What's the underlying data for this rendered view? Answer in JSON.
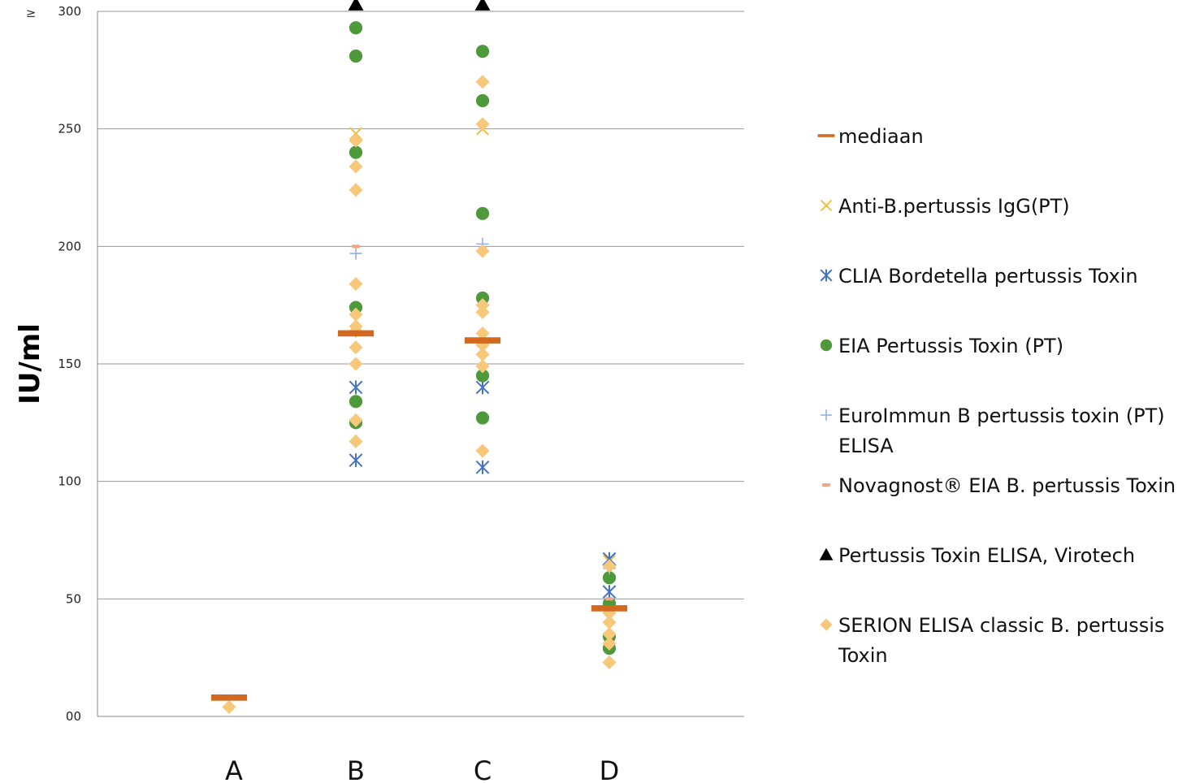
{
  "chart_data": {
    "type": "scatter",
    "ylabel": "IU/ml",
    "ylim": [
      0,
      300
    ],
    "yticks": [
      {
        "value": 0,
        "label": "00"
      },
      {
        "value": 50,
        "label": "50"
      },
      {
        "value": 100,
        "label": "100"
      },
      {
        "value": 150,
        "label": "150"
      },
      {
        "value": 200,
        "label": "200"
      },
      {
        "value": 250,
        "label": "250"
      },
      {
        "value": 300,
        "label": "300"
      }
    ],
    "top_tick_prefix": "≥",
    "categories": [
      "A",
      "B",
      "C",
      "D"
    ],
    "grid": true,
    "legend_position": "right",
    "series": [
      {
        "name": "mediaan",
        "marker": "dash",
        "color": "#d2691e",
        "points": [
          [
            "A",
            8
          ],
          [
            "B",
            163
          ],
          [
            "C",
            160
          ],
          [
            "D",
            46
          ]
        ]
      },
      {
        "name": "Anti-B.pertussis IgG(PT)",
        "marker": "x",
        "color": "#f0c040",
        "points": [
          [
            "B",
            248
          ],
          [
            "B",
            243
          ],
          [
            "C",
            250
          ],
          [
            "D",
            66
          ]
        ]
      },
      {
        "name": "CLIA Bordetella pertussis Toxin",
        "marker": "asterisk",
        "color": "#4472c4",
        "points": [
          [
            "B",
            140
          ],
          [
            "B",
            109
          ],
          [
            "C",
            140
          ],
          [
            "C",
            106
          ],
          [
            "D",
            67
          ],
          [
            "D",
            62
          ],
          [
            "D",
            53
          ]
        ]
      },
      {
        "name": "EIA Pertussis Toxin (PT)",
        "marker": "circle",
        "color": "#4e9a3a",
        "points": [
          [
            "B",
            293
          ],
          [
            "B",
            281
          ],
          [
            "B",
            240
          ],
          [
            "B",
            174
          ],
          [
            "B",
            134
          ],
          [
            "B",
            125
          ],
          [
            "C",
            283
          ],
          [
            "C",
            262
          ],
          [
            "C",
            214
          ],
          [
            "C",
            178
          ],
          [
            "C",
            145
          ],
          [
            "C",
            127
          ],
          [
            "D",
            59
          ],
          [
            "D",
            48
          ],
          [
            "D",
            34
          ],
          [
            "D",
            29
          ]
        ]
      },
      {
        "name": "EuroImmun B pertussis toxin (PT) ELISA",
        "marker": "plus",
        "color": "#8fb0e0",
        "points": [
          [
            "B",
            197
          ],
          [
            "C",
            201
          ],
          [
            "D",
            63
          ]
        ]
      },
      {
        "name": "Novagnost® EIA B. pertussis Toxin",
        "marker": "smalldash",
        "color": "#f4a582",
        "points": [
          [
            "B",
            200
          ],
          [
            "C",
            199
          ],
          [
            "D",
            50
          ]
        ]
      },
      {
        "name": "Pertussis Toxin ELISA, Virotech",
        "marker": "triangle",
        "color": "#000000",
        "points": [
          [
            "B",
            303
          ],
          [
            "C",
            303
          ]
        ]
      },
      {
        "name": "SERION ELISA classic B. pertussis Toxin",
        "marker": "diamond",
        "color": "#f7c77a",
        "points": [
          [
            "A",
            4
          ],
          [
            "B",
            245
          ],
          [
            "B",
            234
          ],
          [
            "B",
            224
          ],
          [
            "B",
            184
          ],
          [
            "B",
            171
          ],
          [
            "B",
            166
          ],
          [
            "B",
            164
          ],
          [
            "B",
            157
          ],
          [
            "B",
            150
          ],
          [
            "B",
            126
          ],
          [
            "B",
            117
          ],
          [
            "C",
            270
          ],
          [
            "C",
            252
          ],
          [
            "C",
            198
          ],
          [
            "C",
            175
          ],
          [
            "C",
            172
          ],
          [
            "C",
            163
          ],
          [
            "C",
            158
          ],
          [
            "C",
            154
          ],
          [
            "C",
            149
          ],
          [
            "C",
            113
          ],
          [
            "D",
            64
          ],
          [
            "D",
            44
          ],
          [
            "D",
            40
          ],
          [
            "D",
            35
          ],
          [
            "D",
            31
          ],
          [
            "D",
            23
          ]
        ]
      }
    ],
    "legend_lines": [
      [
        "mediaan"
      ],
      [
        "Anti-B.pertussis IgG(PT)"
      ],
      [
        "CLIA Bordetella pertussis Toxin"
      ],
      [
        "EIA Pertussis Toxin (PT)"
      ],
      [
        "EuroImmun B pertussis toxin (PT)",
        "ELISA"
      ],
      [
        "Novagnost® EIA B. pertussis Toxin"
      ],
      [
        "Pertussis Toxin ELISA, Virotech"
      ],
      [
        "SERION ELISA classic B. pertussis",
        "Toxin"
      ]
    ]
  }
}
